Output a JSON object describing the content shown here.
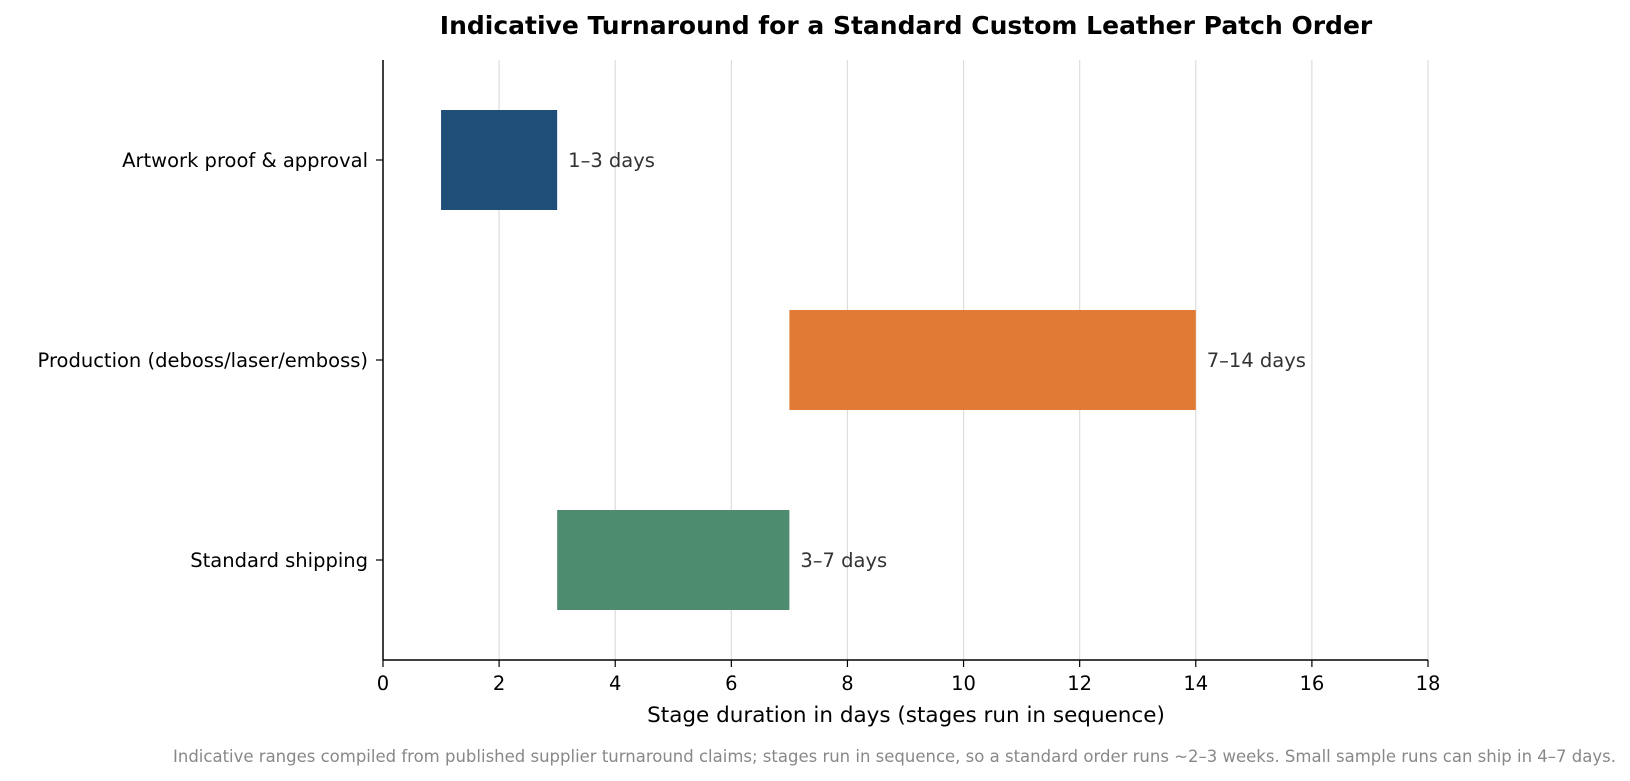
{
  "chart_data": {
    "type": "bar",
    "orientation": "horizontal-range",
    "title": "Indicative Turnaround for a Standard Custom Leather Patch Order",
    "xlabel": "Stage duration in days (stages run in sequence)",
    "ylabel": "",
    "xlim": [
      0,
      18
    ],
    "xticks": [
      0,
      2,
      4,
      6,
      8,
      10,
      12,
      14,
      16,
      18
    ],
    "grid": "vertical",
    "categories": [
      "Artwork proof & approval",
      "Production (deboss/laser/emboss)",
      "Standard shipping"
    ],
    "series": [
      {
        "ranges": [
          [
            1,
            3
          ],
          [
            7,
            14
          ],
          [
            3,
            7
          ]
        ],
        "labels": [
          "1–3 days",
          "7–14 days",
          "3–7 days"
        ],
        "colors": [
          "#1f4e79",
          "#e07a35",
          "#4d8c6e"
        ]
      }
    ],
    "footnote": "Indicative ranges compiled from published supplier turnaround claims; stages run in sequence, so a standard order runs ~2–3 weeks. Small sample runs can ship in 4–7 days."
  }
}
